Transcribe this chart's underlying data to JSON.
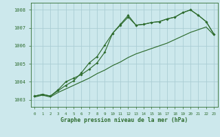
{
  "title": "Graphe pression niveau de la mer (hPa)",
  "background_color": "#cce8ec",
  "grid_color": "#aacdd4",
  "line_color": "#2d6b2d",
  "xlim": [
    -0.5,
    23.5
  ],
  "ylim": [
    1002.6,
    1008.4
  ],
  "yticks": [
    1003,
    1004,
    1005,
    1006,
    1007,
    1008
  ],
  "xticks": [
    0,
    1,
    2,
    3,
    4,
    5,
    6,
    7,
    8,
    9,
    10,
    11,
    12,
    13,
    14,
    15,
    16,
    17,
    18,
    19,
    20,
    21,
    22,
    23
  ],
  "line1_y": [
    1003.2,
    1003.3,
    1003.2,
    1003.5,
    1003.8,
    1004.05,
    1004.5,
    1005.05,
    1005.4,
    1006.05,
    1006.7,
    1007.15,
    1007.6,
    1007.15,
    1007.2,
    1007.3,
    1007.35,
    1007.5,
    1007.6,
    1007.85,
    1008.0,
    1007.7,
    1007.35,
    1006.65
  ],
  "line2_y": [
    1003.2,
    1003.3,
    1003.2,
    1003.55,
    1004.0,
    1004.2,
    1004.4,
    1004.7,
    1005.05,
    1005.65,
    1006.7,
    1007.2,
    1007.7,
    1007.15,
    1007.2,
    1007.3,
    1007.35,
    1007.5,
    1007.6,
    1007.85,
    1008.0,
    1007.7,
    1007.35,
    1006.65
  ],
  "line3_y": [
    1003.15,
    1003.25,
    1003.15,
    1003.4,
    1003.6,
    1003.8,
    1004.0,
    1004.2,
    1004.45,
    1004.65,
    1004.9,
    1005.1,
    1005.35,
    1005.55,
    1005.7,
    1005.85,
    1006.0,
    1006.15,
    1006.35,
    1006.55,
    1006.75,
    1006.9,
    1007.05,
    1006.6
  ]
}
